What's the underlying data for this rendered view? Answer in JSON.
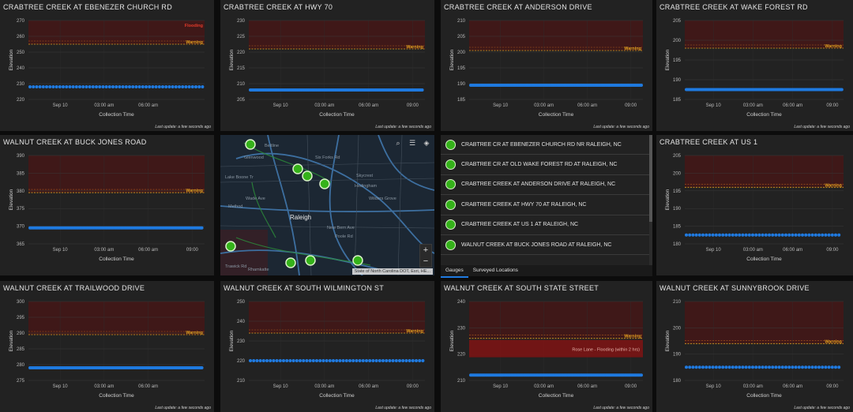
{
  "colors": {
    "series": "#1f7ae0",
    "warning": "#e0a020",
    "flooding": "#e03a2a",
    "gauge_marker": "#35b21a"
  },
  "common": {
    "xlabel": "Collection Time",
    "ylabel": "Elevation",
    "last_update": "Last update: a few seconds ago",
    "warning_label": "Warning"
  },
  "charts": [
    {
      "title": "CRABTREE CREEK AT EBENEZER CHURCH RD",
      "yticks": [
        "270",
        "260",
        "250",
        "240",
        "230",
        "220"
      ],
      "xticks": [
        "Sep 10",
        "03:00 am",
        "06:00 am"
      ],
      "flooding_label": "Flooding",
      "series_level": 228,
      "warning_level": 255,
      "annotation": ""
    },
    {
      "title": "CRABTREE CREEK AT HWY 70",
      "yticks": [
        "230",
        "225",
        "220",
        "215",
        "210",
        "205"
      ],
      "xticks": [
        "Sep 10",
        "03:00 am",
        "06:00 am",
        "09:00"
      ],
      "flooding_label": "",
      "series_level": 208,
      "warning_level": 221,
      "annotation": ""
    },
    {
      "title": "CRABTREE CREEK AT ANDERSON DRIVE",
      "yticks": [
        "210",
        "205",
        "200",
        "195",
        "190",
        "185"
      ],
      "xticks": [
        "Sep 10",
        "03:00 am",
        "06:00 am",
        "09:00"
      ],
      "flooding_label": "",
      "series_level": 189.5,
      "warning_level": 200.5,
      "annotation": ""
    },
    {
      "title": "CRABTREE CREEK AT WAKE FOREST RD",
      "yticks": [
        "205",
        "200",
        "195",
        "190",
        "185"
      ],
      "xticks": [
        "Sep 10",
        "03:00 am",
        "06:00 am",
        "09:00"
      ],
      "flooding_label": "",
      "series_level": 187.5,
      "warning_level": 198,
      "annotation": ""
    },
    {
      "title": "WALNUT CREEK AT BUCK JONES ROAD",
      "yticks": [
        "390",
        "385",
        "380",
        "375",
        "370",
        "365"
      ],
      "xticks": [
        "Sep 10",
        "03:00 am",
        "06:00 am",
        "09:00"
      ],
      "flooding_label": "",
      "series_level": 369.5,
      "warning_level": 379.5,
      "annotation": ""
    },
    {
      "title": "CRABTREE CREEK AT US 1",
      "yticks": [
        "205",
        "200",
        "195",
        "190",
        "185",
        "180"
      ],
      "xticks": [
        "Sep 10",
        "03:00 am",
        "06:00 am",
        "09:00"
      ],
      "flooding_label": "",
      "series_level": 182.5,
      "warning_level": 196,
      "annotation": ""
    },
    {
      "title": "WALNUT CREEK AT TRAILWOOD DRIVE",
      "yticks": [
        "300",
        "295",
        "290",
        "285",
        "280",
        "275"
      ],
      "xticks": [
        "Sep 10",
        "03:00 am",
        "06:00 am"
      ],
      "flooding_label": "",
      "series_level": 279,
      "warning_level": 289.5,
      "annotation": ""
    },
    {
      "title": "WALNUT CREEK AT SOUTH WILMINGTON ST",
      "yticks": [
        "250",
        "240",
        "230",
        "220",
        "210"
      ],
      "xticks": [
        "Sep 10",
        "03:00 am",
        "06:00 am",
        "09:00"
      ],
      "flooding_label": "",
      "series_level": 220,
      "warning_level": 234,
      "annotation": ""
    },
    {
      "title": "WALNUT CREEK AT SOUTH STATE STREET",
      "yticks": [
        "240",
        "230",
        "220",
        "210"
      ],
      "xticks": [
        "Sep 10",
        "03:00 am",
        "06:00 am",
        "09:00"
      ],
      "flooding_label": "",
      "series_level": 212,
      "warning_level": 226,
      "annotation": "Rose Lane - Flooding (within 2 hrs)"
    },
    {
      "title": "WALNUT CREEK AT SUNNYBROOK DRIVE",
      "yticks": [
        "210",
        "200",
        "190",
        "180"
      ],
      "xticks": [
        "Sep 10",
        "03:00 am",
        "06:00 am",
        "09:00"
      ],
      "flooding_label": "",
      "series_level": 185,
      "warning_level": 194,
      "annotation": ""
    }
  ],
  "map": {
    "attribution": "State of North Carolina DOT, Esri, HE...",
    "city_label": "Raleigh",
    "place_labels": [
      "Beltline",
      "Wade Ave",
      "Six Forks Rd",
      "Skycrest",
      "Hedingham",
      "Wilders Grove",
      "New Bern Ave",
      "Poole Rd",
      "Method",
      "Lake Boone Tr",
      "Glenwood",
      "Rhamkatte",
      "Trawick Rd"
    ],
    "zoom_in": "+",
    "zoom_out": "−"
  },
  "gauges": {
    "items": [
      "CRABTREE CR AT EBENEZER CHURCH RD NR RALEIGH, NC",
      "CRABTREE CR AT OLD WAKE FOREST RD AT RALEIGH, NC",
      "CRABTREE CREEK AT ANDERSON DRIVE AT RALEIGH, NC",
      "CRABTREE CREEK AT HWY 70 AT RALEIGH, NC",
      "CRABTREE CREEK AT US 1 AT RALEIGH, NC",
      "WALNUT CREEK AT BUCK JONES ROAD AT RALEIGH, NC"
    ],
    "tabs": [
      "Gauges",
      "Surveyed Locations"
    ]
  }
}
